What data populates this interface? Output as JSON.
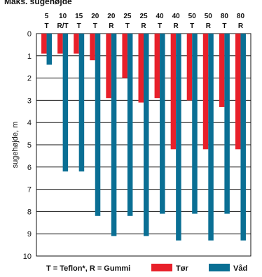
{
  "page": {
    "title": "Maks. sugehøjde"
  },
  "legend_note": "T = Teflon*, R = Gummi",
  "colors": {
    "dry": "#e8202a",
    "wet": "#0a6f94",
    "grid": "#111111"
  },
  "chart_data": {
    "type": "bar",
    "title": "",
    "xlabel": "",
    "ylabel": "sugehøjde, m",
    "ylim": [
      0,
      10
    ],
    "y_inverted": true,
    "y_ticks": [
      0,
      1,
      2,
      3,
      4,
      5,
      6,
      7,
      8,
      9,
      10
    ],
    "grid": true,
    "legend": "bottom",
    "categories": [
      {
        "size": "5",
        "material": "T"
      },
      {
        "size": "10",
        "material": "R/T"
      },
      {
        "size": "15",
        "material": "T"
      },
      {
        "size": "20",
        "material": "T"
      },
      {
        "size": "20",
        "material": "R"
      },
      {
        "size": "25",
        "material": "T"
      },
      {
        "size": "25",
        "material": "R"
      },
      {
        "size": "40",
        "material": "T"
      },
      {
        "size": "40",
        "material": "R"
      },
      {
        "size": "50",
        "material": "T"
      },
      {
        "size": "50",
        "material": "R"
      },
      {
        "size": "80",
        "material": "T"
      },
      {
        "size": "80",
        "material": "R"
      }
    ],
    "series": [
      {
        "name": "Tør",
        "values": [
          0.9,
          0.9,
          0.9,
          1.2,
          2.9,
          2.0,
          3.1,
          2.9,
          5.2,
          3.0,
          5.2,
          3.3,
          5.2
        ]
      },
      {
        "name": "Våd",
        "values": [
          1.4,
          6.2,
          6.2,
          8.2,
          9.1,
          8.2,
          9.1,
          8.1,
          9.3,
          8.1,
          9.3,
          8.1,
          9.3
        ]
      }
    ]
  }
}
